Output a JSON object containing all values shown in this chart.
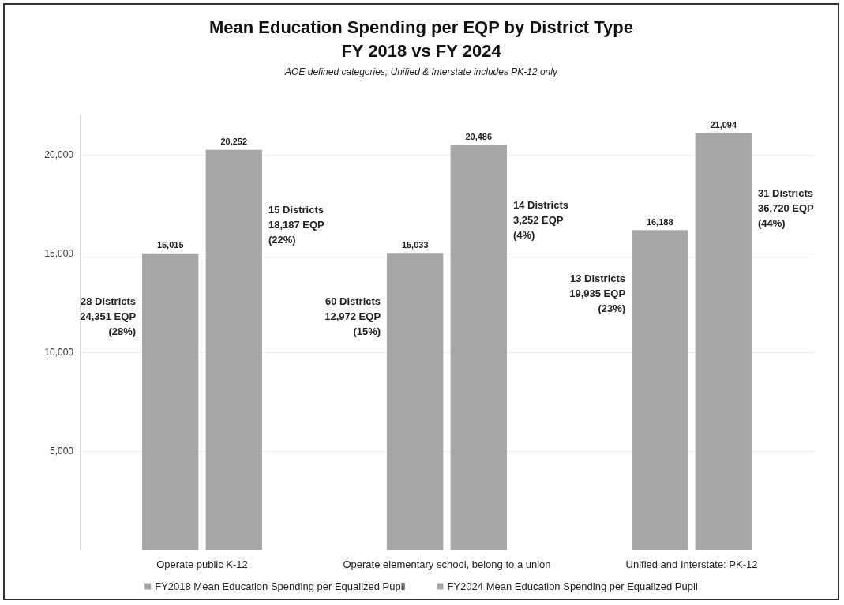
{
  "chart_data": {
    "type": "bar",
    "title": "Mean Education Spending per EQP by District Type\nFY 2018 vs FY 2024",
    "subtitle": "AOE defined categories; Unified & Interstate includes PK-12 only",
    "categories": [
      "Operate public K-12",
      "Operate elementary school, belong to a union",
      "Unified and Interstate: PK-12"
    ],
    "series": [
      {
        "name": "FY2018 Mean Education Spending per Equalized Pupil",
        "color": "#a6a6a6",
        "values": [
          15015,
          15033,
          16188
        ],
        "value_labels": [
          "15,015",
          "15,033",
          "16,188"
        ]
      },
      {
        "name": "FY2024 Mean Education Spending per Equalized Pupil",
        "color": "#a6a6a6",
        "values": [
          20252,
          20486,
          21094
        ],
        "value_labels": [
          "20,252",
          "20,486",
          "21,094"
        ]
      }
    ],
    "ylim": [
      0,
      22000
    ],
    "yticks": [
      {
        "value": 5000,
        "label": "5,000"
      },
      {
        "value": 10000,
        "label": "10,000"
      },
      {
        "value": 15000,
        "label": "15,000"
      },
      {
        "value": 20000,
        "label": "20,000"
      }
    ],
    "grid": "y",
    "legend": "bottom",
    "annotations": [
      "28 Districts\n24,351 EQP\n(28%)",
      "15 Districts\n18,187 EQP\n(22%)",
      "60 Districts\n12,972 EQP\n(15%)",
      "14 Districts\n3,252 EQP\n(4%)",
      "13 Districts\n19,935 EQP\n(23%)",
      "31 Districts\n36,720 EQP\n(44%)"
    ]
  }
}
